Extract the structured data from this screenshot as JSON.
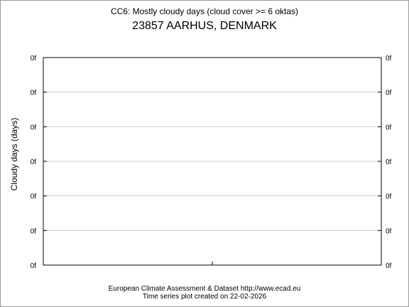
{
  "header": {
    "title": "CC6: Mostly cloudy days (cloud cover >= 6 oktas)",
    "subtitle": "23857 AARHUS, DENMARK"
  },
  "footer": {
    "line1": "European Climate Assessment & Dataset  http://www.ecad.eu",
    "line2": "Time series plot created on 22-02-2026"
  },
  "chart_data": {
    "type": "line",
    "title": "CC6: Mostly cloudy days (cloud cover >= 6 oktas)",
    "subtitle": "23857 AARHUS, DENMARK",
    "xlabel": "",
    "ylabel": "Cloudy days (days)",
    "yticks": [
      "0f",
      "0f",
      "0f",
      "0f",
      "0f",
      "0f",
      "0f"
    ],
    "x": [],
    "series": [],
    "grid": true,
    "colors": {
      "grid": "#cccccc",
      "axis": "#000000"
    }
  }
}
